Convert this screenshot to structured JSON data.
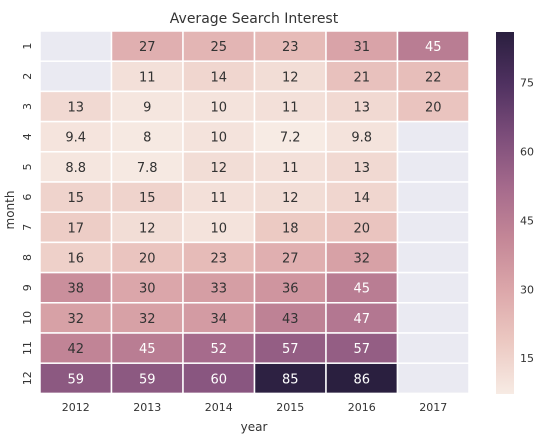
{
  "chart_data": {
    "type": "heatmap",
    "title": "Average Search Interest",
    "xlabel": "year",
    "ylabel": "month",
    "x": [
      "2012",
      "2013",
      "2014",
      "2015",
      "2016",
      "2017"
    ],
    "y": [
      "1",
      "2",
      "3",
      "4",
      "5",
      "6",
      "7",
      "8",
      "9",
      "10",
      "11",
      "12"
    ],
    "values": [
      [
        null,
        27,
        25,
        23,
        31,
        45
      ],
      [
        null,
        11,
        14,
        12,
        21,
        22
      ],
      [
        13,
        9,
        10,
        11,
        13,
        20
      ],
      [
        9.4,
        8,
        10,
        7.2,
        9.8,
        null
      ],
      [
        8.8,
        7.8,
        12,
        11,
        13,
        null
      ],
      [
        15,
        15,
        11,
        12,
        14,
        null
      ],
      [
        17,
        12,
        10,
        18,
        20,
        null
      ],
      [
        16,
        20,
        23,
        27,
        32,
        null
      ],
      [
        38,
        30,
        33,
        36,
        45,
        null
      ],
      [
        32,
        32,
        34,
        43,
        47,
        null
      ],
      [
        42,
        45,
        52,
        57,
        57,
        null
      ],
      [
        59,
        59,
        60,
        85,
        86,
        null
      ]
    ],
    "colorbar": {
      "ticks": [
        15,
        30,
        45,
        60,
        75
      ],
      "vmin": 7.2,
      "vmax": 86
    },
    "missing_color": "#eaeaf2",
    "colormap": [
      "#f7ebe4",
      "#ecc9c2",
      "#dca7aa",
      "#c48797",
      "#a56a8c",
      "#7c4d7a",
      "#4f3160",
      "#2a1f3f"
    ]
  }
}
